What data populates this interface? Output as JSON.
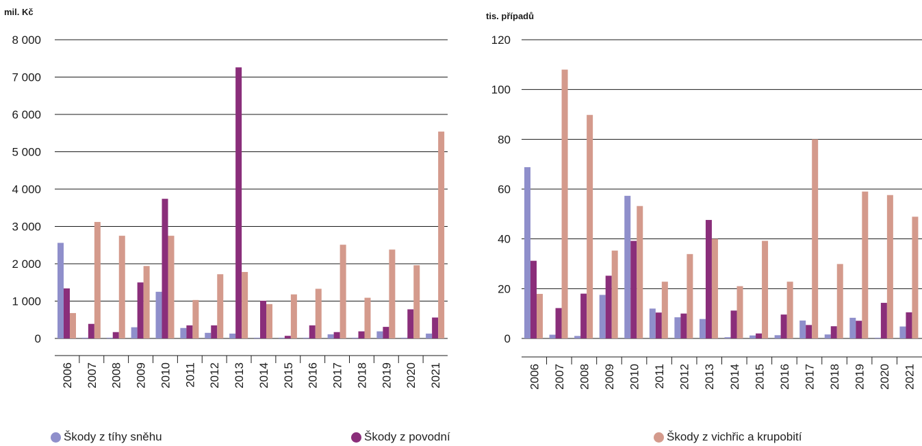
{
  "colors": {
    "snow": "#8f8fcb",
    "flood": "#8a2e7a",
    "storm": "#d49a8c",
    "gridline": "#1a1a1a",
    "text": "#1a1a1a"
  },
  "legend": [
    {
      "key": "snow",
      "label": "Škody z tíhy sněhu"
    },
    {
      "key": "flood",
      "label": "Škody z povodní"
    },
    {
      "key": "storm",
      "label": "Škody z vichřic a krupobití"
    }
  ],
  "chart_data": [
    {
      "type": "bar",
      "title": "",
      "ylabel": "mil. Kč",
      "xlabel": "",
      "ylim": [
        0,
        8000
      ],
      "yticks": [
        0,
        1000,
        2000,
        3000,
        4000,
        5000,
        6000,
        7000,
        8000
      ],
      "ytick_labels": [
        "0",
        "1 000",
        "2 000",
        "3 000",
        "4 000",
        "5 000",
        "6 000",
        "7 000",
        "8 000"
      ],
      "grid": true,
      "categories": [
        "2006",
        "2007",
        "2008",
        "2009",
        "2010",
        "2011",
        "2012",
        "2013",
        "2014",
        "2015",
        "2016",
        "2017",
        "2018",
        "2019",
        "2020",
        "2021"
      ],
      "series": [
        {
          "name": "Škody z tíhy sněhu",
          "key": "snow",
          "values": [
            2560,
            20,
            20,
            300,
            1250,
            280,
            150,
            130,
            20,
            20,
            20,
            110,
            20,
            190,
            20,
            130
          ]
        },
        {
          "name": "Škody z povodní",
          "key": "flood",
          "values": [
            1340,
            390,
            170,
            1500,
            3740,
            350,
            350,
            7260,
            1010,
            70,
            350,
            170,
            190,
            310,
            780,
            560
          ]
        },
        {
          "name": "Škody z vichřic a krupobití",
          "key": "storm",
          "values": [
            680,
            3120,
            2750,
            1940,
            2750,
            1030,
            1720,
            1780,
            920,
            1180,
            1330,
            2510,
            1090,
            2380,
            1960,
            5540
          ]
        }
      ]
    },
    {
      "type": "bar",
      "title": "",
      "ylabel": "tis. případů",
      "xlabel": "",
      "ylim": [
        0,
        120
      ],
      "yticks": [
        0,
        20,
        40,
        60,
        80,
        100,
        120
      ],
      "ytick_labels": [
        "0",
        "20",
        "40",
        "60",
        "80",
        "100",
        "120"
      ],
      "grid": true,
      "categories": [
        "2006",
        "2007",
        "2008",
        "2009",
        "2010",
        "2011",
        "2012",
        "2013",
        "2014",
        "2015",
        "2016",
        "2017",
        "2018",
        "2019",
        "2020",
        "2021"
      ],
      "series": [
        {
          "name": "Škody z tíhy sněhu",
          "key": "snow",
          "values": [
            68.8,
            1.5,
            1.0,
            17.5,
            57.3,
            12.0,
            8.5,
            7.8,
            0.5,
            1.2,
            1.3,
            7.2,
            1.6,
            8.3,
            0.3,
            4.8
          ]
        },
        {
          "name": "Škody z povodní",
          "key": "flood",
          "values": [
            31.2,
            12.2,
            18.0,
            25.2,
            39.2,
            10.4,
            10.0,
            47.6,
            11.2,
            2.0,
            9.6,
            5.4,
            4.9,
            7.1,
            14.3,
            10.5
          ]
        },
        {
          "name": "Škody z vichřic a krupobití",
          "key": "storm",
          "values": [
            17.9,
            108.0,
            89.8,
            35.3,
            53.2,
            22.8,
            33.9,
            40.0,
            21.0,
            39.2,
            22.8,
            80.0,
            29.9,
            59.0,
            57.6,
            48.9
          ]
        }
      ]
    }
  ]
}
